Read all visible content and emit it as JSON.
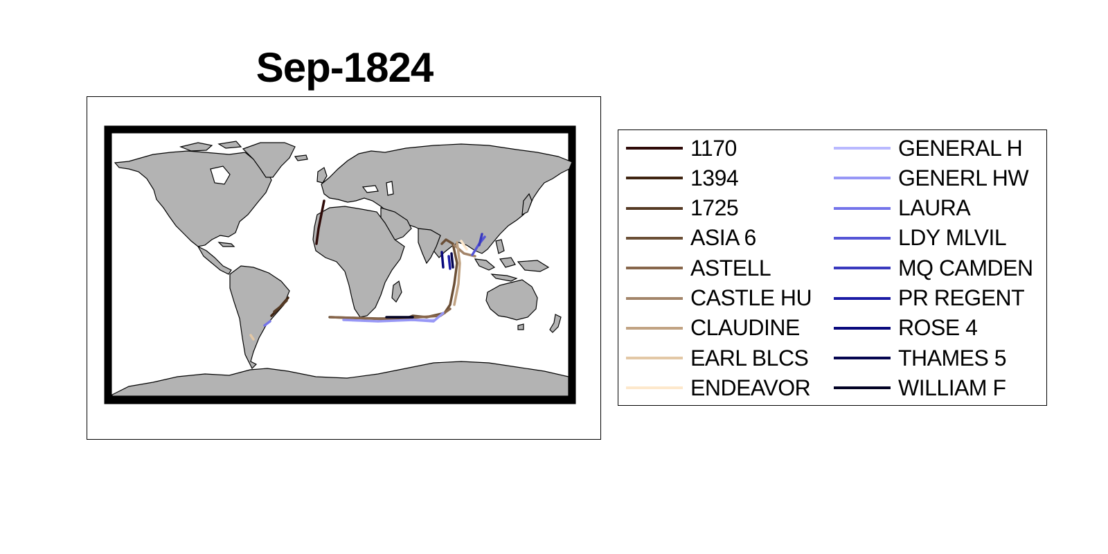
{
  "title": "Sep-1824",
  "map": {
    "land_color": "#b3b3b3",
    "ocean_color": "#ffffff",
    "coast_color": "#000000"
  },
  "legend": {
    "items": [
      {
        "label": "1170",
        "color": "#2e0a08"
      },
      {
        "label": "1394",
        "color": "#3f2411"
      },
      {
        "label": "1725",
        "color": "#553a24"
      },
      {
        "label": "ASIA 6",
        "color": "#6b4f36"
      },
      {
        "label": "ASTELL",
        "color": "#87664b"
      },
      {
        "label": "CASTLE HU",
        "color": "#a3856a"
      },
      {
        "label": "CLAUDINE",
        "color": "#c1a383"
      },
      {
        "label": "EARL BLCS",
        "color": "#e3c8a6"
      },
      {
        "label": "ENDEAVOR",
        "color": "#fde8cc"
      },
      {
        "label": "GENERAL H",
        "color": "#b9b9ff"
      },
      {
        "label": "GENERL HW",
        "color": "#9797f6"
      },
      {
        "label": "LAURA",
        "color": "#7474ea"
      },
      {
        "label": "LDY MLVIL",
        "color": "#5555d6"
      },
      {
        "label": "MQ CAMDEN",
        "color": "#3939be"
      },
      {
        "label": "PR REGENT",
        "color": "#1b1ba5"
      },
      {
        "label": "ROSE 4",
        "color": "#08087c"
      },
      {
        "label": "THAMES 5",
        "color": "#05054f"
      },
      {
        "label": "WILLIAM F",
        "color": "#020224"
      }
    ]
  }
}
